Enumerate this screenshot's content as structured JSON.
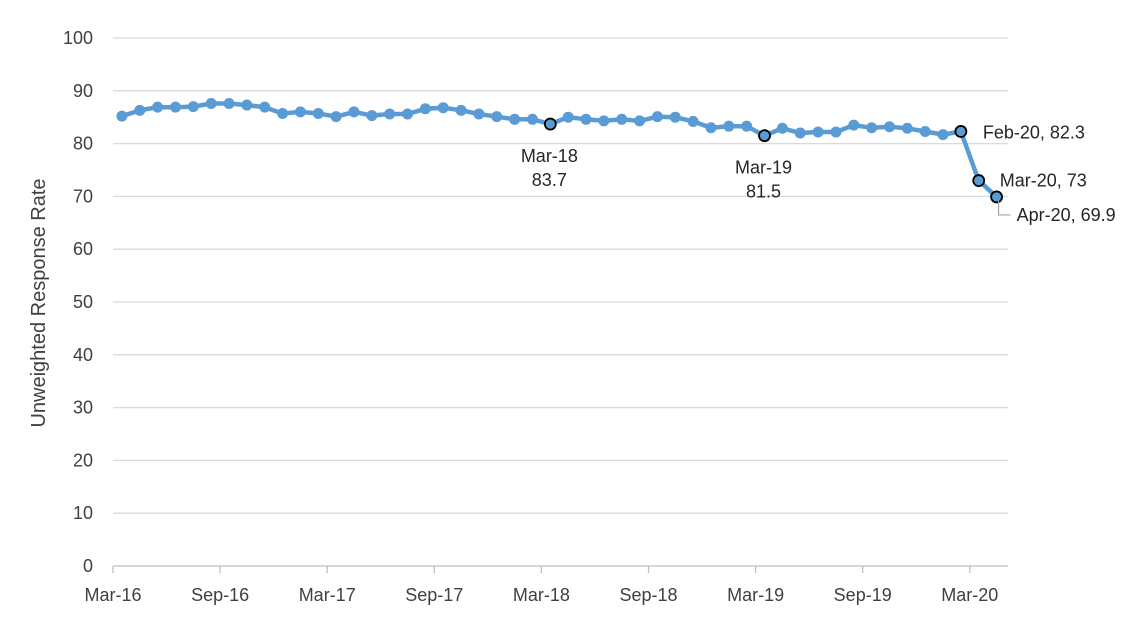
{
  "chart_data": {
    "type": "line",
    "title": "",
    "xlabel": "",
    "ylabel": "Unweighted Response Rate",
    "ylim": [
      0,
      100
    ],
    "yticks": [
      0,
      10,
      20,
      30,
      40,
      50,
      60,
      70,
      80,
      90,
      100
    ],
    "x_tick_labels": [
      "Mar-16",
      "Sep-16",
      "Mar-17",
      "Sep-17",
      "Mar-18",
      "Sep-18",
      "Mar-19",
      "Sep-19",
      "Mar-20"
    ],
    "grid": true,
    "legend": "none",
    "colors": {
      "line": "#5b9bd5",
      "highlight_marker_stroke": "#000000"
    },
    "categories": [
      "Mar-16",
      "Apr-16",
      "May-16",
      "Jun-16",
      "Jul-16",
      "Aug-16",
      "Sep-16",
      "Oct-16",
      "Nov-16",
      "Dec-16",
      "Jan-17",
      "Feb-17",
      "Mar-17",
      "Apr-17",
      "May-17",
      "Jun-17",
      "Jul-17",
      "Aug-17",
      "Sep-17",
      "Oct-17",
      "Nov-17",
      "Dec-17",
      "Jan-18",
      "Feb-18",
      "Mar-18",
      "Apr-18",
      "May-18",
      "Jun-18",
      "Jul-18",
      "Aug-18",
      "Sep-18",
      "Oct-18",
      "Nov-18",
      "Dec-18",
      "Jan-19",
      "Feb-19",
      "Mar-19",
      "Apr-19",
      "May-19",
      "Jun-19",
      "Jul-19",
      "Aug-19",
      "Sep-19",
      "Oct-19",
      "Nov-19",
      "Dec-19",
      "Jan-20",
      "Feb-20",
      "Mar-20",
      "Apr-20"
    ],
    "series": [
      {
        "values": [
          85.2,
          86.3,
          86.9,
          86.9,
          87.0,
          87.6,
          87.6,
          87.3,
          86.9,
          85.7,
          86.0,
          85.7,
          85.1,
          86.0,
          85.3,
          85.6,
          85.6,
          86.6,
          86.8,
          86.3,
          85.6,
          85.1,
          84.6,
          84.6,
          83.7,
          85.0,
          84.6,
          84.3,
          84.6,
          84.3,
          85.1,
          85.0,
          84.2,
          83.0,
          83.3,
          83.3,
          81.5,
          82.9,
          82.0,
          82.2,
          82.2,
          83.5,
          83.0,
          83.2,
          82.9,
          82.3,
          81.7,
          82.3,
          73.0,
          69.9
        ]
      }
    ],
    "annotations": [
      {
        "category": "Mar-18",
        "value": 83.7,
        "line1": "Mar-18",
        "line2": "83.7"
      },
      {
        "category": "Mar-19",
        "value": 81.5,
        "line1": "Mar-19",
        "line2": "81.5"
      },
      {
        "category": "Feb-20",
        "value": 82.3,
        "text": "Feb-20, 82.3"
      },
      {
        "category": "Mar-20",
        "value": 73,
        "text": "Mar-20, 73"
      },
      {
        "category": "Apr-20",
        "value": 69.9,
        "text": "Apr-20, 69.9"
      }
    ]
  }
}
